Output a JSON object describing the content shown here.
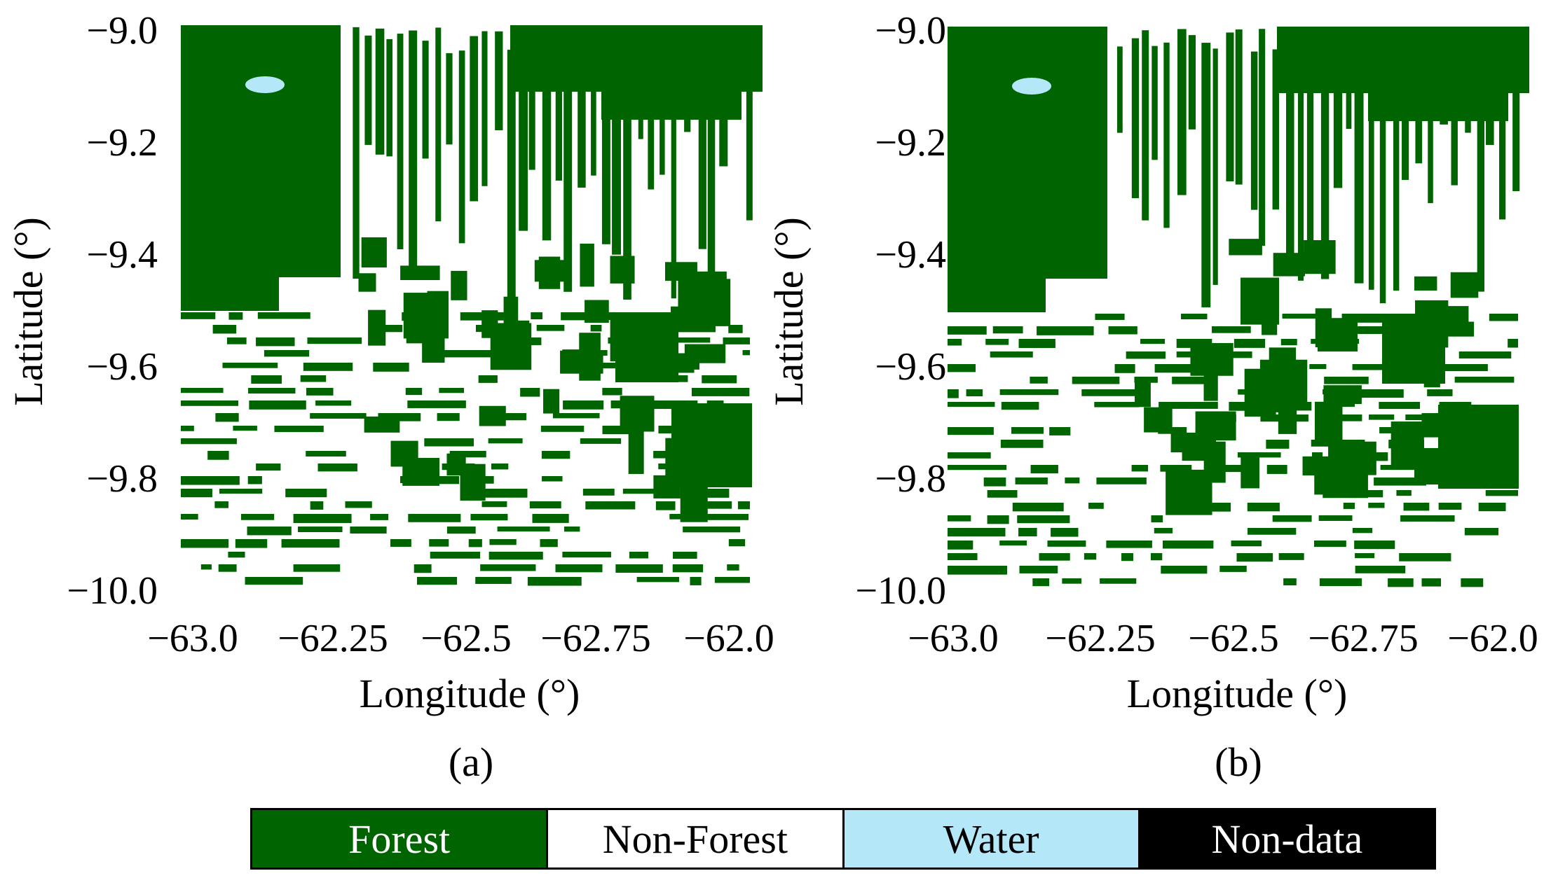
{
  "colors": {
    "forest": "#006400",
    "non_forest": "#ffffff",
    "water": "#b4e8f8",
    "non_data": "#000000"
  },
  "panels": [
    {
      "caption": "(a)",
      "xlabel": "Longitude (°)",
      "ylabel": "Latitude (°)",
      "x_ticks": [
        "−63.0",
        "−62.25",
        "−62.5",
        "−62.75",
        "−62.0"
      ],
      "y_ticks": [
        "−9.0",
        "−9.2",
        "−9.4",
        "−9.6",
        "−9.8",
        "−10.0"
      ]
    },
    {
      "caption": "(b)",
      "xlabel": "Longitude (°)",
      "ylabel": "Latitude (°)",
      "x_ticks": [
        "−63.0",
        "−62.25",
        "−62.5",
        "−62.75",
        "−62.0"
      ],
      "y_ticks": [
        "−9.0",
        "−9.2",
        "−9.4",
        "−9.6",
        "−9.8",
        "−10.0"
      ]
    }
  ],
  "legend": [
    {
      "label": "Forest",
      "color": "#006400",
      "text_color": "#ffffff"
    },
    {
      "label": "Non-Forest",
      "color": "#ffffff",
      "text_color": "#000000"
    },
    {
      "label": "Water",
      "color": "#b4e8f8",
      "text_color": "#000000"
    },
    {
      "label": "Non-data",
      "color": "#000000",
      "text_color": "#ffffff"
    }
  ]
}
